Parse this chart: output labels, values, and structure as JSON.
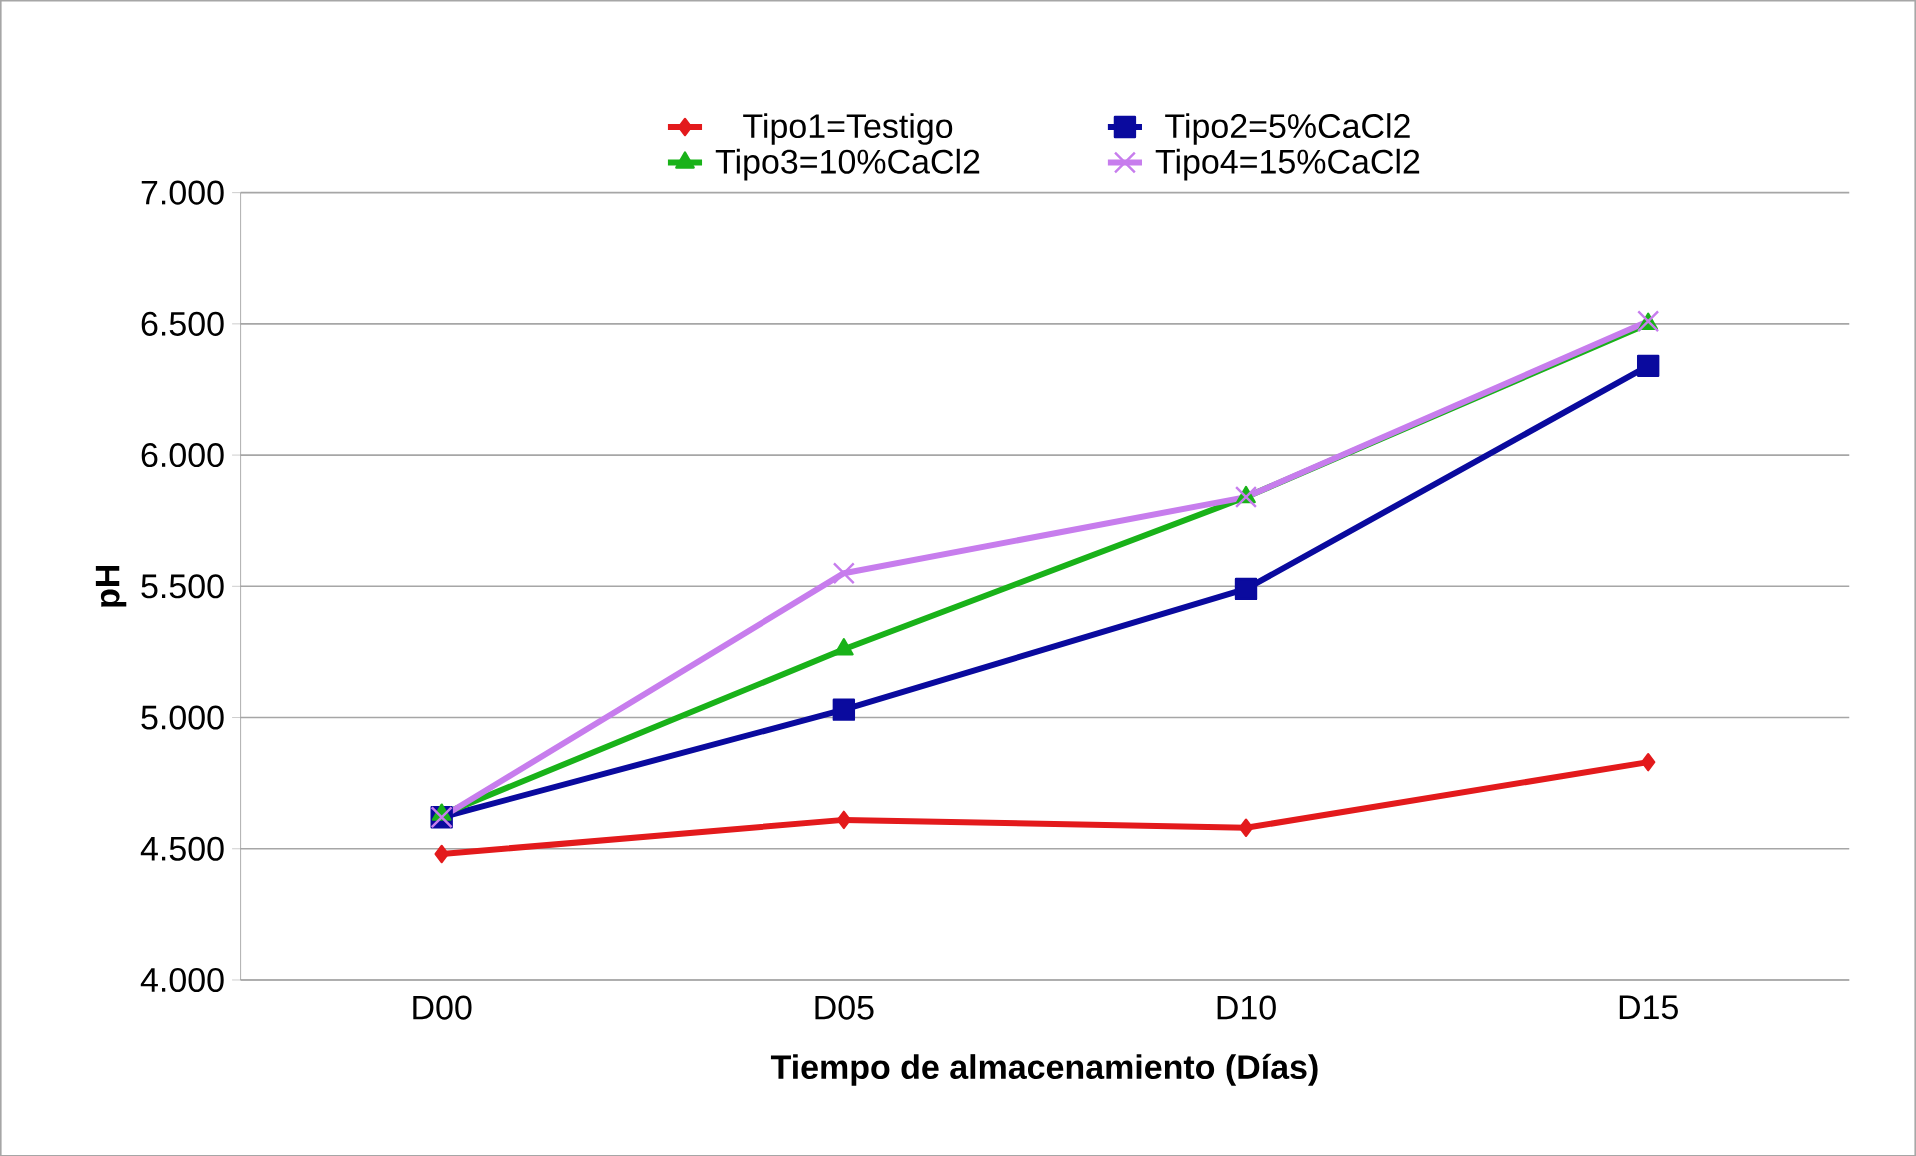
{
  "chart_data": {
    "type": "line",
    "xlabel": "Tiempo de almacenamiento (Días)",
    "ylabel": "pH",
    "categories": [
      "D00",
      "D05",
      "D10",
      "D15"
    ],
    "ylim": [
      4,
      7
    ],
    "yticks": [
      {
        "value": 4,
        "label": "4.000"
      },
      {
        "value": 4.5,
        "label": "4.500"
      },
      {
        "value": 5,
        "label": "5.000"
      },
      {
        "value": 5.5,
        "label": "5.500"
      },
      {
        "value": 6,
        "label": "6.000"
      },
      {
        "value": 6.5,
        "label": "6.500"
      },
      {
        "value": 7,
        "label": "7.000"
      }
    ],
    "grid": "y",
    "legend": "top",
    "series": [
      {
        "name": "Tipo1=Testigo",
        "color": "#e31a1c",
        "marker": "diamond",
        "values": [
          4.48,
          4.61,
          4.58,
          4.83
        ]
      },
      {
        "name": "Tipo2=5%CaCl2",
        "color": "#0a0a9e",
        "marker": "square",
        "values": [
          4.62,
          5.03,
          5.49,
          6.34
        ]
      },
      {
        "name": "Tipo3=10%CaCl2",
        "color": "#19b219",
        "marker": "triangle",
        "values": [
          4.63,
          5.26,
          5.84,
          6.5
        ]
      },
      {
        "name": "Tipo4=15%CaCl2",
        "color": "#c77ded",
        "marker": "cross",
        "values": [
          4.62,
          5.55,
          5.84,
          6.51
        ]
      }
    ]
  }
}
